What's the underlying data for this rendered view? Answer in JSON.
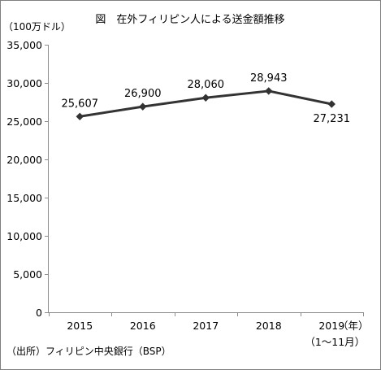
{
  "chart_data": {
    "type": "line",
    "title": "図　在外フィリピン人による送金額推移",
    "unit_label": "（100万ドル）",
    "x_unit_label": "（年）",
    "categories": [
      "2015",
      "2016",
      "2017",
      "2018",
      "2019"
    ],
    "category_notes": [
      "",
      "",
      "",
      "",
      "（1～11月）"
    ],
    "series": [
      {
        "values": [
          25607,
          26900,
          28060,
          28943,
          27231
        ],
        "data_labels": [
          "25,607",
          "26,900",
          "28,060",
          "28,943",
          "27,231"
        ]
      }
    ],
    "ylim": [
      0,
      35000
    ],
    "y_ticks": [
      0,
      5000,
      10000,
      15000,
      20000,
      25000,
      30000,
      35000
    ],
    "y_tick_labels": [
      "0",
      "5,000",
      "10,000",
      "15,000",
      "20,000",
      "25,000",
      "30,000",
      "35,000"
    ],
    "grid": false,
    "legend": "none",
    "line_color": "#333333",
    "marker": "diamond",
    "source": "（出所）フィリピン中央銀行（BSP）"
  }
}
